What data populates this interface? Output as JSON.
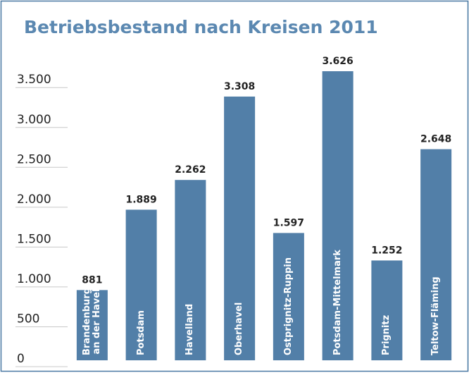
{
  "chart_data": {
    "type": "bar",
    "title": "Betriebsbestand nach Kreisen 2011",
    "categories": [
      "Brandenburg an der Havel",
      "Potsdam",
      "Havelland",
      "Oberhavel",
      "Ostprignitz-Ruppin",
      "Potsdam-Mittelmark",
      "Prignitz",
      "Teltow-Fläming"
    ],
    "values": [
      881,
      1889,
      2262,
      3308,
      1597,
      3626,
      1252,
      2648
    ],
    "value_labels": [
      "881",
      "1.889",
      "2.262",
      "3.308",
      "1.597",
      "3.626",
      "1.252",
      "2.648"
    ],
    "color": "#527fa8",
    "ylim": [
      0,
      3900
    ],
    "yticks": [
      0,
      500,
      {
        "value": 1000,
        "label": "1.000"
      },
      {
        "value": 1500,
        "label": "1.500"
      },
      {
        "value": 2000,
        "label": "2.000"
      },
      {
        "value": 2500,
        "label": "2.500"
      },
      {
        "value": 3000,
        "label": "3.000"
      },
      {
        "value": 3500,
        "label": "3.500"
      }
    ],
    "grid": true
  }
}
